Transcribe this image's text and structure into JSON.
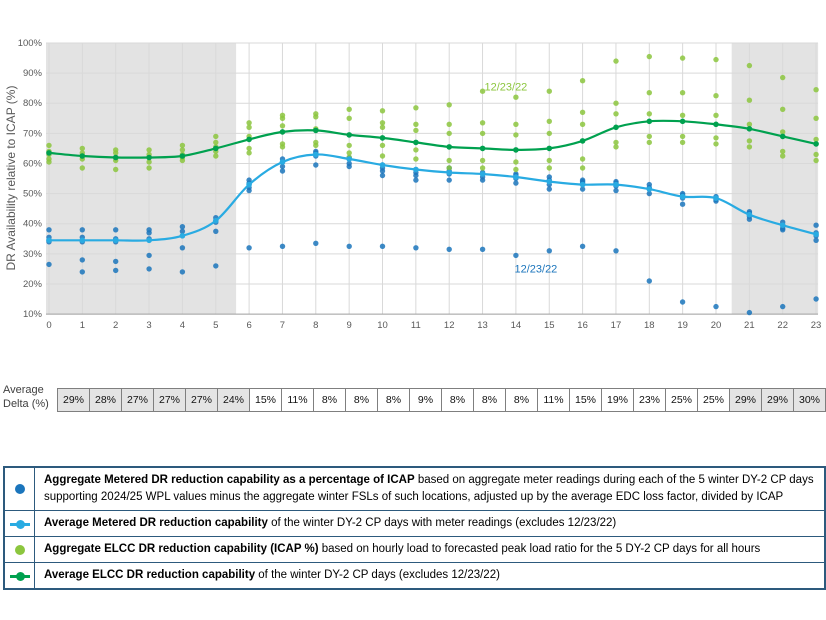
{
  "chart": {
    "ylabel": "DR Availability relative to ICAP (%)",
    "yticks": [
      "100%",
      "90%",
      "80%",
      "70%",
      "60%",
      "50%",
      "40%",
      "30%",
      "20%",
      "10%"
    ],
    "xticks": [
      "0",
      "1",
      "2",
      "3",
      "4",
      "5",
      "6",
      "7",
      "8",
      "9",
      "10",
      "11",
      "12",
      "13",
      "14",
      "15",
      "16",
      "17",
      "18",
      "19",
      "20",
      "21",
      "22",
      "23"
    ],
    "colors": {
      "metered_scatter": "#1b75bc",
      "metered_line": "#29abe2",
      "elcc_scatter": "#8cc63e",
      "elcc_line": "#00a14f",
      "shaded_band": "#e3e3e3",
      "gridline": "#d9d9d9",
      "axis_text": "#595959"
    }
  },
  "chart_data": {
    "type": "scatter",
    "x": [
      0,
      1,
      2,
      3,
      4,
      5,
      6,
      7,
      8,
      9,
      10,
      11,
      12,
      13,
      14,
      15,
      16,
      17,
      18,
      19,
      20,
      21,
      22,
      23
    ],
    "xlabel": "",
    "ylabel": "DR Availability relative to ICAP (%)",
    "ylim": [
      10,
      100
    ],
    "grid": true,
    "shaded_hour_ranges": [
      [
        -0.09,
        5.61
      ],
      [
        20.47,
        23.06
      ]
    ],
    "series": [
      {
        "name": "Aggregate Metered DR reduction capability (% of ICAP), 5 winter DY-2 CP days",
        "type": "scatter",
        "color": "#1b75bc",
        "values_by_hour": [
          [
            38,
            35.5,
            34.5,
            34,
            26.5
          ],
          [
            38,
            35.5,
            34,
            28,
            24
          ],
          [
            38,
            35,
            34,
            27.5,
            24.5
          ],
          [
            38,
            37,
            35,
            29.5,
            25
          ],
          [
            39,
            37.5,
            36,
            32,
            24
          ],
          [
            42,
            41,
            40.5,
            37.5,
            26
          ],
          [
            54.5,
            53.5,
            52,
            51,
            32
          ],
          [
            61.5,
            60.5,
            59,
            57.5,
            32.5
          ],
          [
            64,
            63.5,
            62.5,
            59.5,
            33.5
          ],
          [
            62,
            61.5,
            60,
            59,
            32.5
          ],
          [
            59.5,
            58.5,
            57.5,
            56,
            32.5
          ],
          [
            58,
            57,
            56,
            54.5,
            32
          ],
          [
            58.5,
            57.5,
            56.5,
            54.5,
            31.5
          ],
          [
            57,
            56.5,
            55.5,
            54.5,
            31.5
          ],
          [
            56.5,
            56,
            55,
            53.5,
            29.5
          ],
          [
            55.5,
            54.5,
            53,
            51.5,
            31
          ],
          [
            54.5,
            54,
            53.5,
            51.5,
            32.5
          ],
          [
            54,
            53.5,
            52.5,
            51,
            31
          ],
          [
            53,
            52,
            51.5,
            50,
            21
          ],
          [
            50,
            49.5,
            48.5,
            46.5,
            14
          ],
          [
            49,
            48.5,
            48,
            47.5,
            12.5
          ],
          [
            44,
            43.5,
            42.5,
            41.5,
            10.5
          ],
          [
            40.5,
            39.5,
            38.5,
            38,
            12.5
          ],
          [
            39.5,
            37,
            36,
            34.5,
            15
          ]
        ]
      },
      {
        "name": "Average Metered DR reduction capability (excludes 12/23/22)",
        "type": "line",
        "color": "#29abe2",
        "values": [
          34.5,
          34.5,
          34.5,
          34.5,
          36,
          41,
          53,
          60.5,
          63,
          61.5,
          59.5,
          58,
          57,
          56.5,
          55.5,
          54,
          53,
          53,
          51.5,
          49,
          48.5,
          43,
          39.5,
          36.5
        ]
      },
      {
        "name": "Aggregate ELCC DR reduction capability (ICAP %), 5 DY-2 CP days all hours",
        "type": "scatter",
        "color": "#8cc63e",
        "values_by_hour": [
          [
            66,
            64,
            63,
            61.5,
            60.5
          ],
          [
            65,
            63.5,
            62.5,
            61.5,
            58.5
          ],
          [
            64.5,
            63.5,
            62,
            61,
            58
          ],
          [
            64.5,
            63,
            62,
            60.5,
            58.5
          ],
          [
            66,
            64.5,
            63,
            62,
            61
          ],
          [
            69,
            67,
            65.5,
            64,
            62.5
          ],
          [
            73.5,
            72,
            69,
            65,
            63.5
          ],
          [
            76,
            75,
            72.5,
            66.5,
            65.5
          ],
          [
            76.5,
            75.5,
            71.5,
            67,
            66
          ],
          [
            78,
            75,
            66,
            63.5,
            62
          ],
          [
            77.5,
            73.5,
            72,
            66,
            62.5
          ],
          [
            78.5,
            73,
            71,
            64.5,
            61.5
          ],
          [
            79.5,
            73,
            70,
            61,
            58.5
          ],
          [
            84,
            73.5,
            70,
            61,
            58.5
          ],
          [
            82,
            73,
            69.5,
            60.5,
            58
          ],
          [
            84,
            74,
            70,
            61,
            58.5
          ],
          [
            87.5,
            77,
            73,
            61.5,
            58.5
          ],
          [
            94,
            80,
            76.5,
            67,
            65.5
          ],
          [
            95.5,
            83.5,
            76.5,
            69,
            67
          ],
          [
            95,
            83.5,
            76,
            69,
            67
          ],
          [
            94.5,
            82.5,
            76,
            68.5,
            66.5
          ],
          [
            92.5,
            81,
            73,
            67.5,
            65.5
          ],
          [
            88.5,
            78,
            70.5,
            64,
            62.5
          ],
          [
            84.5,
            75,
            68,
            63,
            61
          ]
        ]
      },
      {
        "name": "Average ELCC DR reduction capability (excludes 12/23/22)",
        "type": "line",
        "color": "#00a14f",
        "values": [
          63.5,
          62.5,
          62,
          62,
          62.5,
          65,
          68,
          70.5,
          71,
          69.5,
          68.5,
          67,
          65.5,
          65,
          64.5,
          65,
          67.5,
          72,
          74,
          74,
          73,
          71.5,
          69,
          66.5
        ]
      }
    ],
    "annotations": [
      {
        "text": "12/23/22",
        "hour": 13.7,
        "value": 85.5,
        "color": "#8cc63e"
      },
      {
        "text": "12/23/22",
        "hour": 14.6,
        "value": 25.2,
        "color": "#1b75bc"
      }
    ]
  },
  "delta_table": {
    "label_line1": "Average",
    "label_line2": "Delta (%)",
    "values": [
      "29%",
      "28%",
      "27%",
      "27%",
      "27%",
      "24%",
      "15%",
      "11%",
      "8%",
      "8%",
      "8%",
      "9%",
      "8%",
      "8%",
      "8%",
      "11%",
      "15%",
      "19%",
      "23%",
      "25%",
      "25%",
      "29%",
      "29%",
      "30%"
    ],
    "shaded": [
      true,
      true,
      true,
      true,
      true,
      true,
      false,
      false,
      false,
      false,
      false,
      false,
      false,
      false,
      false,
      false,
      false,
      false,
      false,
      false,
      false,
      true,
      true,
      true
    ]
  },
  "legend": {
    "border_color": "#2d5a7d",
    "rows": [
      {
        "icon": "blue-dot-icon",
        "icon_color": "#1b75bc",
        "bold": "Aggregate Metered DR reduction capability as a percentage of ICAP",
        "text": " based on aggregate meter readings during each of the 5 winter DY-2 CP days supporting 2024/25 WPL values minus the aggregate winter FSLs of such locations, adjusted up by the average EDC loss factor, divided by ICAP"
      },
      {
        "icon": "blue-line-marker-icon",
        "icon_color": "#29abe2",
        "bold": "Average Metered DR reduction capability",
        "text": " of the winter DY-2 CP days with meter readings (excludes 12/23/22)"
      },
      {
        "icon": "green-dot-icon",
        "icon_color": "#8cc63e",
        "bold": "Aggregate ELCC DR reduction capability (ICAP %)",
        "text": " based on hourly load to forecasted peak load ratio for the 5 DY-2 CP days for all hours"
      },
      {
        "icon": "green-line-marker-icon",
        "icon_color": "#00a14f",
        "bold": "Average ELCC DR reduction capability",
        "text": " of the winter DY-2 CP days (excludes 12/23/22)"
      }
    ]
  }
}
